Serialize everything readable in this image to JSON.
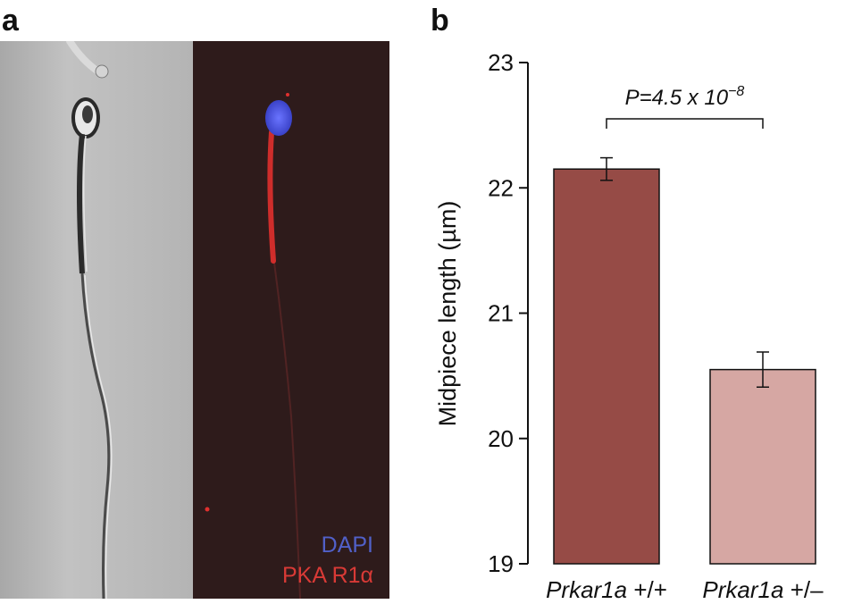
{
  "panels": {
    "a": {
      "label": "a"
    },
    "b": {
      "label": "b"
    }
  },
  "micrograph": {
    "legend": [
      {
        "text": "DAPI",
        "color": "#5160c8"
      },
      {
        "text": "PKA R1α",
        "color": "#d93a36"
      }
    ],
    "colors": {
      "phase_background": "#b9b9b9",
      "fluorescence_background": "#2e1a1a",
      "stain_red": "#e0302e",
      "stain_blue": "#4a55e0"
    }
  },
  "chart_data": {
    "type": "bar",
    "categories_italic": [
      "Prkar1a",
      "Prkar1a"
    ],
    "categories_suffix": [
      " +/+",
      " +/–"
    ],
    "values": [
      22.15,
      20.55
    ],
    "errors": [
      0.09,
      0.14
    ],
    "colors": [
      "#964b46",
      "#d6a7a3"
    ],
    "ylabel": "Midpiece length (µm)",
    "ylim": [
      19,
      23
    ],
    "yticks": [
      19,
      20,
      21,
      22,
      23
    ],
    "annotation": {
      "prefix": "P=4.5 x 10",
      "exponent": "−8"
    },
    "grid": false,
    "legend": "none"
  }
}
